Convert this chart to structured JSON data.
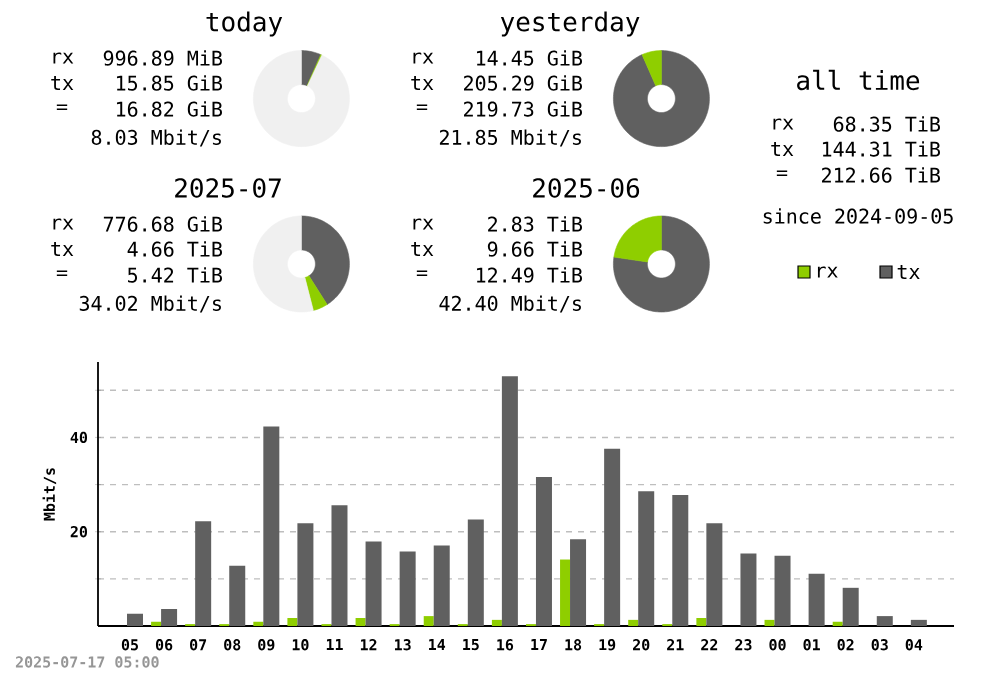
{
  "chart_data": [
    {
      "type": "donut",
      "title": "today",
      "categories": [
        null,
        null,
        null
      ],
      "values": [
        6.6,
        0.4,
        93
      ],
      "colors": [
        "#606060",
        "#8fce00",
        "#f0f0f0"
      ],
      "annotations": [
        "rx",
        "996.89 MiB",
        "tx",
        "15.85 GiB",
        "=",
        "16.82 GiB",
        "8.03 Mbit/s"
      ]
    },
    {
      "type": "donut",
      "title": "yesterday",
      "categories": [
        null,
        null
      ],
      "values": [
        93.4,
        6.6
      ],
      "colors": [
        "#606060",
        "#8fce00"
      ],
      "annotations": [
        "rx",
        "14.45 GiB",
        "tx",
        "205.29 GiB",
        "=",
        "219.73 GiB",
        "21.85 Mbit/s"
      ]
    },
    {
      "type": "other",
      "title": "all time",
      "annotations": [
        "rx",
        "68.35 TiB",
        "tx",
        "144.31 TiB",
        "=",
        "212.66 TiB",
        "since 2024-09-05"
      ]
    },
    {
      "type": "donut",
      "title": "2025-07",
      "categories": [
        null,
        null,
        null
      ],
      "values": [
        41,
        5,
        54
      ],
      "colors": [
        "#606060",
        "#8fce00",
        "#f0f0f0"
      ],
      "annotations": [
        "rx",
        "776.68 GiB",
        "tx",
        "4.66 TiB",
        "=",
        "5.42 TiB",
        "34.02 Mbit/s"
      ]
    },
    {
      "type": "donut",
      "title": "2025-06",
      "categories": [
        null,
        null
      ],
      "values": [
        77.3,
        22.7
      ],
      "colors": [
        "#606060",
        "#8fce00"
      ],
      "annotations": [
        "rx",
        "2.83 TiB",
        "tx",
        "9.66 TiB",
        "=",
        "12.49 TiB",
        "42.40 Mbit/s"
      ]
    },
    {
      "type": "bar",
      "ylabel": "Mbit/s",
      "categories": [
        "05",
        "06",
        "07",
        "08",
        "09",
        "10",
        "11",
        "12",
        "13",
        "14",
        "15",
        "16",
        "17",
        "18",
        "19",
        "20",
        "21",
        "22",
        "23",
        "00",
        "01",
        "02",
        "03",
        "04"
      ],
      "series": [
        {
          "name": "rx",
          "color": "#8fce00",
          "values": [
            0,
            0.9,
            0.4,
            0.4,
            0.9,
            1.7,
            0.4,
            1.7,
            0.4,
            2.1,
            0.4,
            1.3,
            0.4,
            14.1,
            0.4,
            1.3,
            0.4,
            1.7,
            0,
            1.3,
            0,
            0.9,
            0,
            0
          ]
        },
        {
          "name": "tx",
          "color": "#606060",
          "values": [
            2.6,
            3.6,
            22.2,
            12.8,
            42.3,
            21.8,
            25.6,
            17.9,
            15.8,
            17.1,
            22.6,
            53.0,
            31.6,
            18.4,
            37.6,
            28.6,
            27.8,
            21.8,
            15.4,
            14.9,
            11.1,
            8.1,
            2.1,
            1.3
          ]
        }
      ],
      "ylim": [
        0,
        56
      ],
      "yticks": [
        {
          "value": 10,
          "label": null
        },
        20,
        {
          "value": 30,
          "label": null
        },
        40,
        {
          "value": 50,
          "label": null
        }
      ],
      "grid": "y",
      "legend": "top right",
      "annotations": [
        "2025-07-17 05:00"
      ]
    }
  ]
}
